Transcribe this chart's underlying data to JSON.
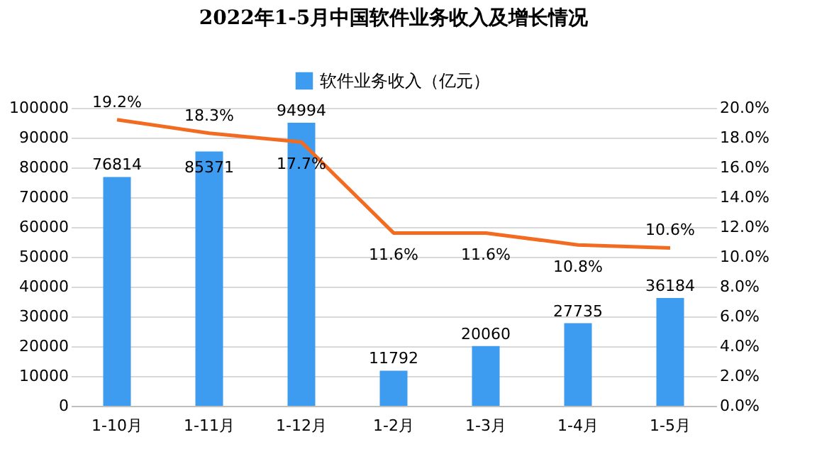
{
  "chart_data": {
    "type": "bar",
    "title": "2022年1-5月中国软件业务收入及增长情况",
    "categories": [
      "1-10月",
      "1-11月",
      "1-12月",
      "1-2月",
      "1-3月",
      "1-4月",
      "1-5月"
    ],
    "series": [
      {
        "name": "软件业务收入（亿元）",
        "color": "#3d9cf0",
        "values": [
          76814,
          85371,
          94994,
          11792,
          20060,
          27735,
          36184
        ],
        "value_labels": [
          "76814",
          "85371",
          "94994",
          "11792",
          "20060",
          "27735",
          "36184"
        ]
      },
      {
        "type": "line",
        "axis": "y2",
        "color": "#f26b21",
        "values": [
          19.2,
          18.3,
          17.7,
          11.6,
          11.6,
          10.8,
          10.6
        ],
        "value_labels": [
          "19.2%",
          "18.3%",
          "17.7%",
          "11.6%",
          "11.6%",
          "10.8%",
          "10.6%"
        ]
      }
    ],
    "ylim": [
      0,
      100000
    ],
    "yticks": [
      0,
      10000,
      20000,
      30000,
      40000,
      50000,
      60000,
      70000,
      80000,
      90000,
      100000
    ],
    "y2lim": [
      0,
      20
    ],
    "y2ticks": [
      {
        "value": 0,
        "label": "0.0%"
      },
      {
        "value": 2,
        "label": "2.0%"
      },
      {
        "value": 4,
        "label": "4.0%"
      },
      {
        "value": 6,
        "label": "6.0%"
      },
      {
        "value": 8,
        "label": "8.0%"
      },
      {
        "value": 10,
        "label": "10.0%"
      },
      {
        "value": 12,
        "label": "12.0%"
      },
      {
        "value": 14,
        "label": "14.0%"
      },
      {
        "value": 16,
        "label": "16.0%"
      },
      {
        "value": 18,
        "label": "18.0%"
      },
      {
        "value": 20,
        "label": "20.0%"
      }
    ],
    "grid": "y",
    "legend": "top"
  }
}
